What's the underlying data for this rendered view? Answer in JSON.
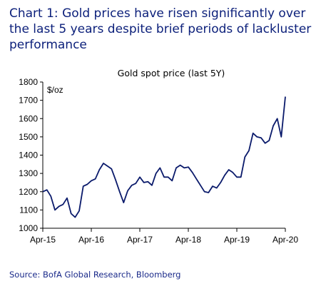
{
  "page": {
    "title": "Chart 1: Gold prices have risen significantly over the last 5 years despite brief periods of lackluster performance",
    "source": "Source: BofA Global Research, Bloomberg"
  },
  "chart_data": {
    "type": "line",
    "title": "Gold spot price (last 5Y)",
    "ylabel": "$/oz",
    "xlabel": "",
    "ylim": [
      1000,
      1800
    ],
    "yticks": [
      1000,
      1100,
      1200,
      1300,
      1400,
      1500,
      1600,
      1700,
      1800
    ],
    "xticks": [
      "Apr-15",
      "Apr-16",
      "Apr-17",
      "Apr-18",
      "Apr-19",
      "Apr-20"
    ],
    "grid": false,
    "series": [
      {
        "color": "#0a1a6b",
        "x": [
          "2015-04",
          "2015-05",
          "2015-06",
          "2015-07",
          "2015-08",
          "2015-09",
          "2015-10",
          "2015-11",
          "2015-12",
          "2016-01",
          "2016-02",
          "2016-03",
          "2016-04",
          "2016-05",
          "2016-06",
          "2016-07",
          "2016-08",
          "2016-09",
          "2016-10",
          "2016-11",
          "2016-12",
          "2017-01",
          "2017-02",
          "2017-03",
          "2017-04",
          "2017-05",
          "2017-06",
          "2017-07",
          "2017-08",
          "2017-09",
          "2017-10",
          "2017-11",
          "2017-12",
          "2018-01",
          "2018-02",
          "2018-03",
          "2018-04",
          "2018-05",
          "2018-06",
          "2018-07",
          "2018-08",
          "2018-09",
          "2018-10",
          "2018-11",
          "2018-12",
          "2019-01",
          "2019-02",
          "2019-03",
          "2019-04",
          "2019-05",
          "2019-06",
          "2019-07",
          "2019-08",
          "2019-09",
          "2019-10",
          "2019-11",
          "2019-12",
          "2020-01",
          "2020-02",
          "2020-03",
          "2020-04"
        ],
        "values": [
          1200,
          1210,
          1175,
          1100,
          1120,
          1130,
          1165,
          1080,
          1060,
          1095,
          1230,
          1240,
          1260,
          1270,
          1320,
          1355,
          1340,
          1325,
          1265,
          1200,
          1140,
          1205,
          1235,
          1245,
          1280,
          1250,
          1255,
          1235,
          1300,
          1330,
          1280,
          1280,
          1260,
          1330,
          1345,
          1330,
          1335,
          1305,
          1270,
          1235,
          1200,
          1195,
          1230,
          1220,
          1250,
          1290,
          1320,
          1305,
          1280,
          1280,
          1390,
          1425,
          1520,
          1500,
          1495,
          1465,
          1480,
          1560,
          1600,
          1500,
          1720
        ]
      }
    ]
  }
}
